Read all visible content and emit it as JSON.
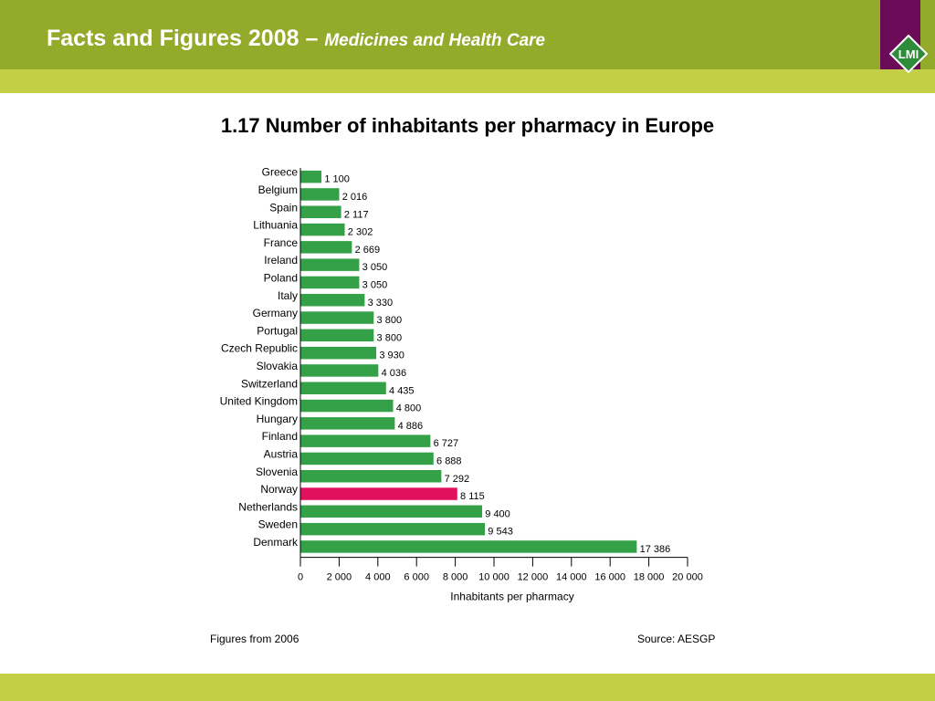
{
  "header": {
    "title": "Facts and Figures 2008 –",
    "subtitle": "Medicines and Health Care",
    "logo_text": "LMI"
  },
  "colors": {
    "header_green": "#93aa2a",
    "stripe_green": "#c3d045",
    "logo_purple": "#6b0a57",
    "logo_green": "#2e8b3a",
    "bar_green": "#34a048",
    "bar_highlight": "#e0115f"
  },
  "footer": {
    "note_left": "Figures from 2006",
    "note_right": "Source: AESGP"
  },
  "chart_data": {
    "type": "bar",
    "orientation": "horizontal",
    "title": "1.17 Number of inhabitants per pharmacy in Europe",
    "xlabel": "Inhabitants per pharmacy",
    "ylabel": "",
    "xlim": [
      0,
      20000
    ],
    "xticks": [
      0,
      2000,
      4000,
      6000,
      8000,
      10000,
      12000,
      14000,
      16000,
      18000,
      20000
    ],
    "xtick_labels": [
      "0",
      "2 000",
      "4 000",
      "6 000",
      "8 000",
      "10 000",
      "12 000",
      "14 000",
      "16 000",
      "18 000",
      "20 000"
    ],
    "grid": false,
    "legend": "none",
    "highlight_category": "Norway",
    "categories": [
      "Greece",
      "Belgium",
      "Spain",
      "Lithuania",
      "France",
      "Ireland",
      "Poland",
      "Italy",
      "Germany",
      "Portugal",
      "Czech Republic",
      "Slovakia",
      "Switzerland",
      "United Kingdom",
      "Hungary",
      "Finland",
      "Austria",
      "Slovenia",
      "Norway",
      "Netherlands",
      "Sweden",
      "Denmark"
    ],
    "values": [
      1100,
      2016,
      2117,
      2302,
      2669,
      3050,
      3050,
      3330,
      3800,
      3800,
      3930,
      4036,
      4435,
      4800,
      4886,
      6727,
      6888,
      7292,
      8115,
      9400,
      9543,
      17386
    ],
    "value_labels": [
      "1 100",
      "2 016",
      "2 117",
      "2 302",
      "2 669",
      "3 050",
      "3 050",
      "3 330",
      "3 800",
      "3 800",
      "3 930",
      "4 036",
      "4 435",
      "4 800",
      "4 886",
      "6 727",
      "6 888",
      "7 292",
      "8 115",
      "9 400",
      "9 543",
      "17 386"
    ]
  }
}
